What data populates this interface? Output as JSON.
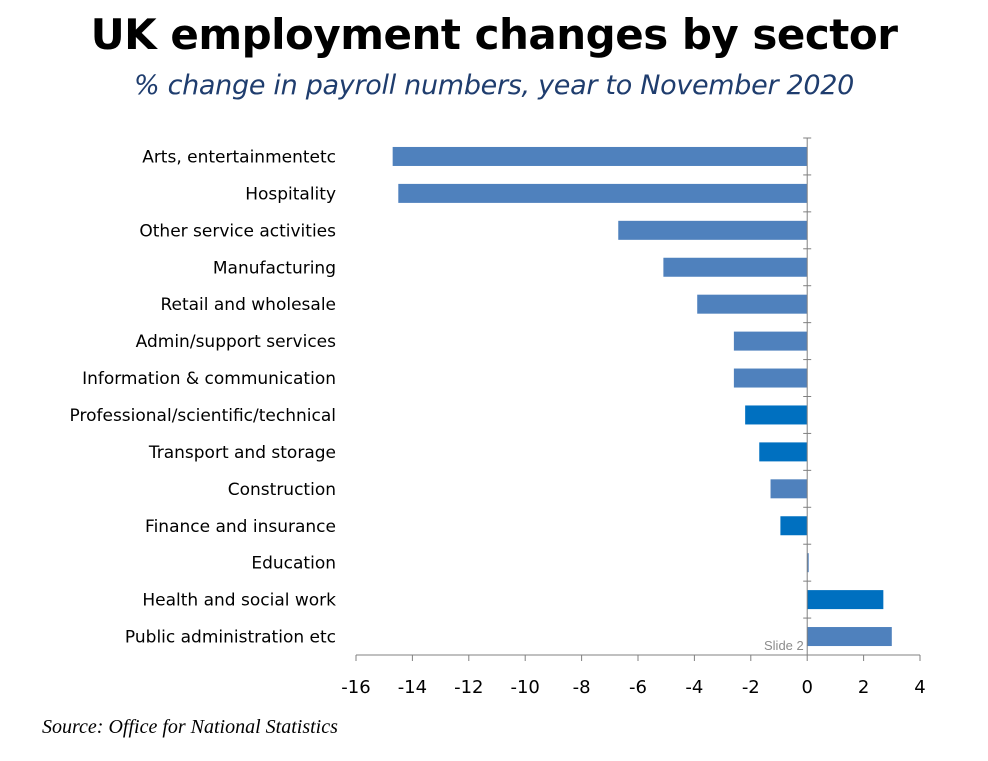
{
  "title": "UK employment changes by sector",
  "subtitle": "% change in payroll numbers, year to November 2020",
  "source": "Source: Office for National Statistics",
  "slide_label": "Slide 2",
  "colors": {
    "bar": "#4f81bd",
    "bar_highlight": "#0070c0",
    "axis": "#808080"
  },
  "chart_data": {
    "type": "bar",
    "orientation": "horizontal",
    "title": "UK employment changes by sector",
    "subtitle": "% change in payroll numbers, year to November 2020",
    "xlim": [
      -16,
      4
    ],
    "xticks": [
      -16,
      -14,
      -12,
      -10,
      -8,
      -6,
      -4,
      -2,
      0,
      2,
      4
    ],
    "grid": false,
    "legend": "none",
    "categories": [
      "Arts, entertainmentetc",
      "Hospitality",
      "Other service activities",
      "Manufacturing",
      "Retail and wholesale",
      "Admin/support services",
      "Information & communication",
      "Professional/scientific/technical",
      "Transport and storage",
      "Construction",
      "Finance and insurance",
      "Education",
      "Health and social work",
      "Public administration etc"
    ],
    "values": [
      -14.7,
      -14.5,
      -6.7,
      -5.1,
      -3.9,
      -2.6,
      -2.6,
      -2.2,
      -1.7,
      -1.3,
      -0.95,
      0.05,
      2.7,
      3.0
    ],
    "highlighted": [
      false,
      false,
      false,
      false,
      false,
      false,
      false,
      true,
      true,
      false,
      true,
      false,
      true,
      false
    ]
  }
}
